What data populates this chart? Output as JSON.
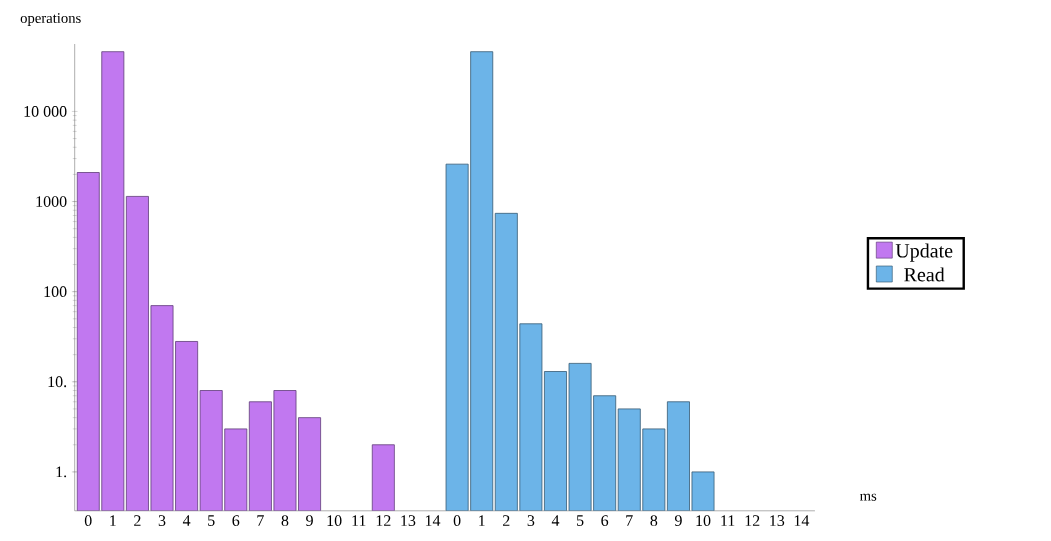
{
  "chart_data": {
    "type": "bar",
    "xlabel": "ms",
    "ylabel": "operations",
    "categories": [
      "0",
      "1",
      "2",
      "3",
      "4",
      "5",
      "6",
      "7",
      "8",
      "9",
      "10",
      "11",
      "12",
      "13",
      "14",
      "0",
      "1",
      "2",
      "3",
      "4",
      "5",
      "6",
      "7",
      "8",
      "9",
      "10",
      "11",
      "12",
      "13",
      "14"
    ],
    "series": [
      {
        "name": "Update",
        "color": "#c178f0",
        "values": [
          2100,
          46000,
          1140,
          70,
          28,
          8,
          3,
          6,
          8,
          4,
          null,
          null,
          2,
          null,
          null,
          null,
          null,
          null,
          null,
          null,
          null,
          null,
          null,
          null,
          null,
          null,
          null,
          null,
          null,
          null
        ]
      },
      {
        "name": "Read",
        "color": "#6cb4e8",
        "values": [
          null,
          null,
          null,
          null,
          null,
          null,
          null,
          null,
          null,
          null,
          null,
          null,
          null,
          null,
          null,
          2600,
          46000,
          740,
          44,
          13,
          16,
          7,
          5,
          3,
          6,
          1,
          null,
          null,
          null,
          null
        ]
      }
    ],
    "log": "y",
    "ylim": [
      0.37,
      56000
    ],
    "yticks": [
      {
        "value": 1,
        "label": "1."
      },
      {
        "value": 10,
        "label": "10."
      },
      100,
      1000,
      {
        "value": 10000,
        "label": "10 000"
      }
    ],
    "legend": "right",
    "grid": false
  }
}
